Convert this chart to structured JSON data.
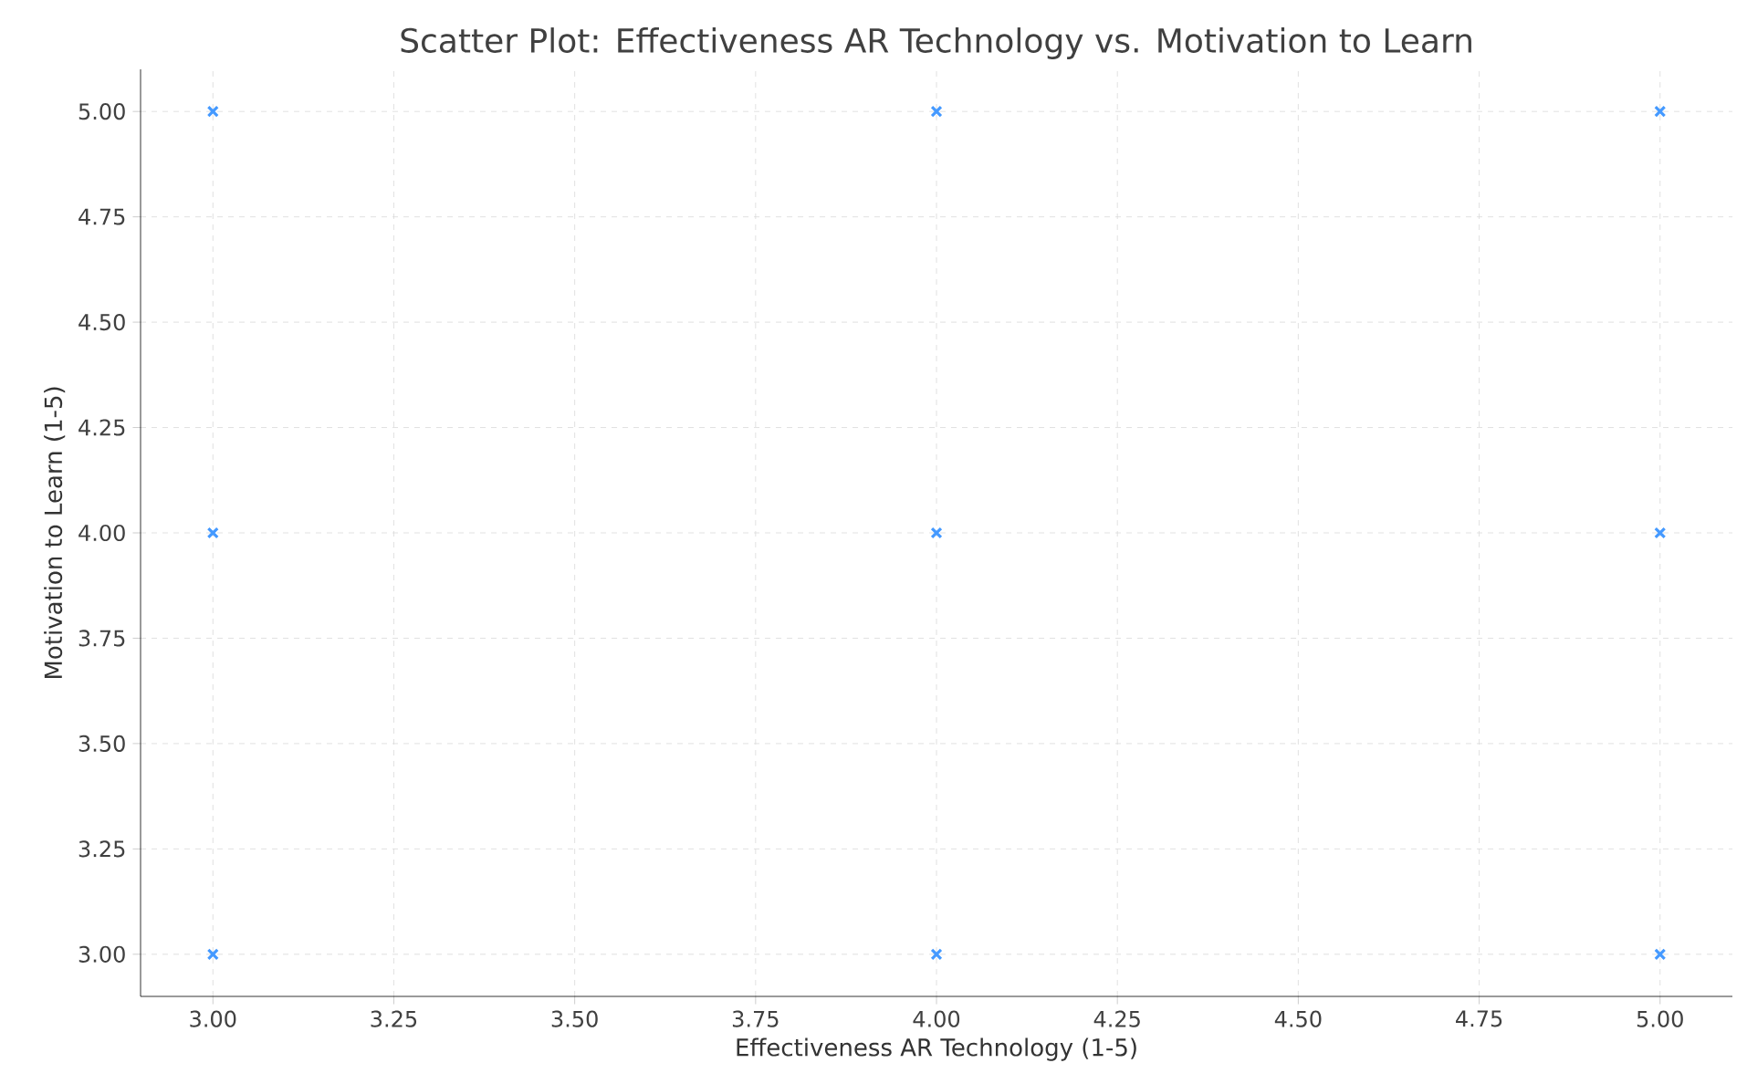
{
  "chart_data": {
    "type": "scatter",
    "title": "Scatter Plot: Effectiveness AR Technology vs. Motivation to Learn",
    "xlabel": "Effectiveness AR Technology (1-5)",
    "ylabel": "Motivation to Learn (1-5)",
    "x": [
      3,
      3,
      3,
      4,
      4,
      4,
      5,
      5,
      5
    ],
    "values": [
      5,
      4,
      3,
      5,
      4,
      3,
      5,
      4,
      3
    ],
    "color": "#4499ff",
    "marker": "cross",
    "grid": true,
    "xlim": [
      2.9,
      5.1
    ],
    "ylim": [
      2.9,
      5.1
    ],
    "xticks": [
      {
        "value": 3,
        "label": "3.00"
      },
      {
        "value": 3.25,
        "label": "3.25"
      },
      {
        "value": 3.5,
        "label": "3.50"
      },
      {
        "value": 3.75,
        "label": "3.75"
      },
      {
        "value": 4,
        "label": "4.00"
      },
      {
        "value": 4.25,
        "label": "4.25"
      },
      {
        "value": 4.5,
        "label": "4.50"
      },
      {
        "value": 4.75,
        "label": "4.75"
      },
      {
        "value": 5,
        "label": "5.00"
      }
    ],
    "yticks": [
      {
        "value": 3,
        "label": "3.00"
      },
      {
        "value": 3.25,
        "label": "3.25"
      },
      {
        "value": 3.5,
        "label": "3.50"
      },
      {
        "value": 3.75,
        "label": "3.75"
      },
      {
        "value": 4,
        "label": "4.00"
      },
      {
        "value": 4.25,
        "label": "4.25"
      },
      {
        "value": 4.5,
        "label": "4.50"
      },
      {
        "value": 4.75,
        "label": "4.75"
      },
      {
        "value": 5,
        "label": "5.00"
      }
    ]
  }
}
